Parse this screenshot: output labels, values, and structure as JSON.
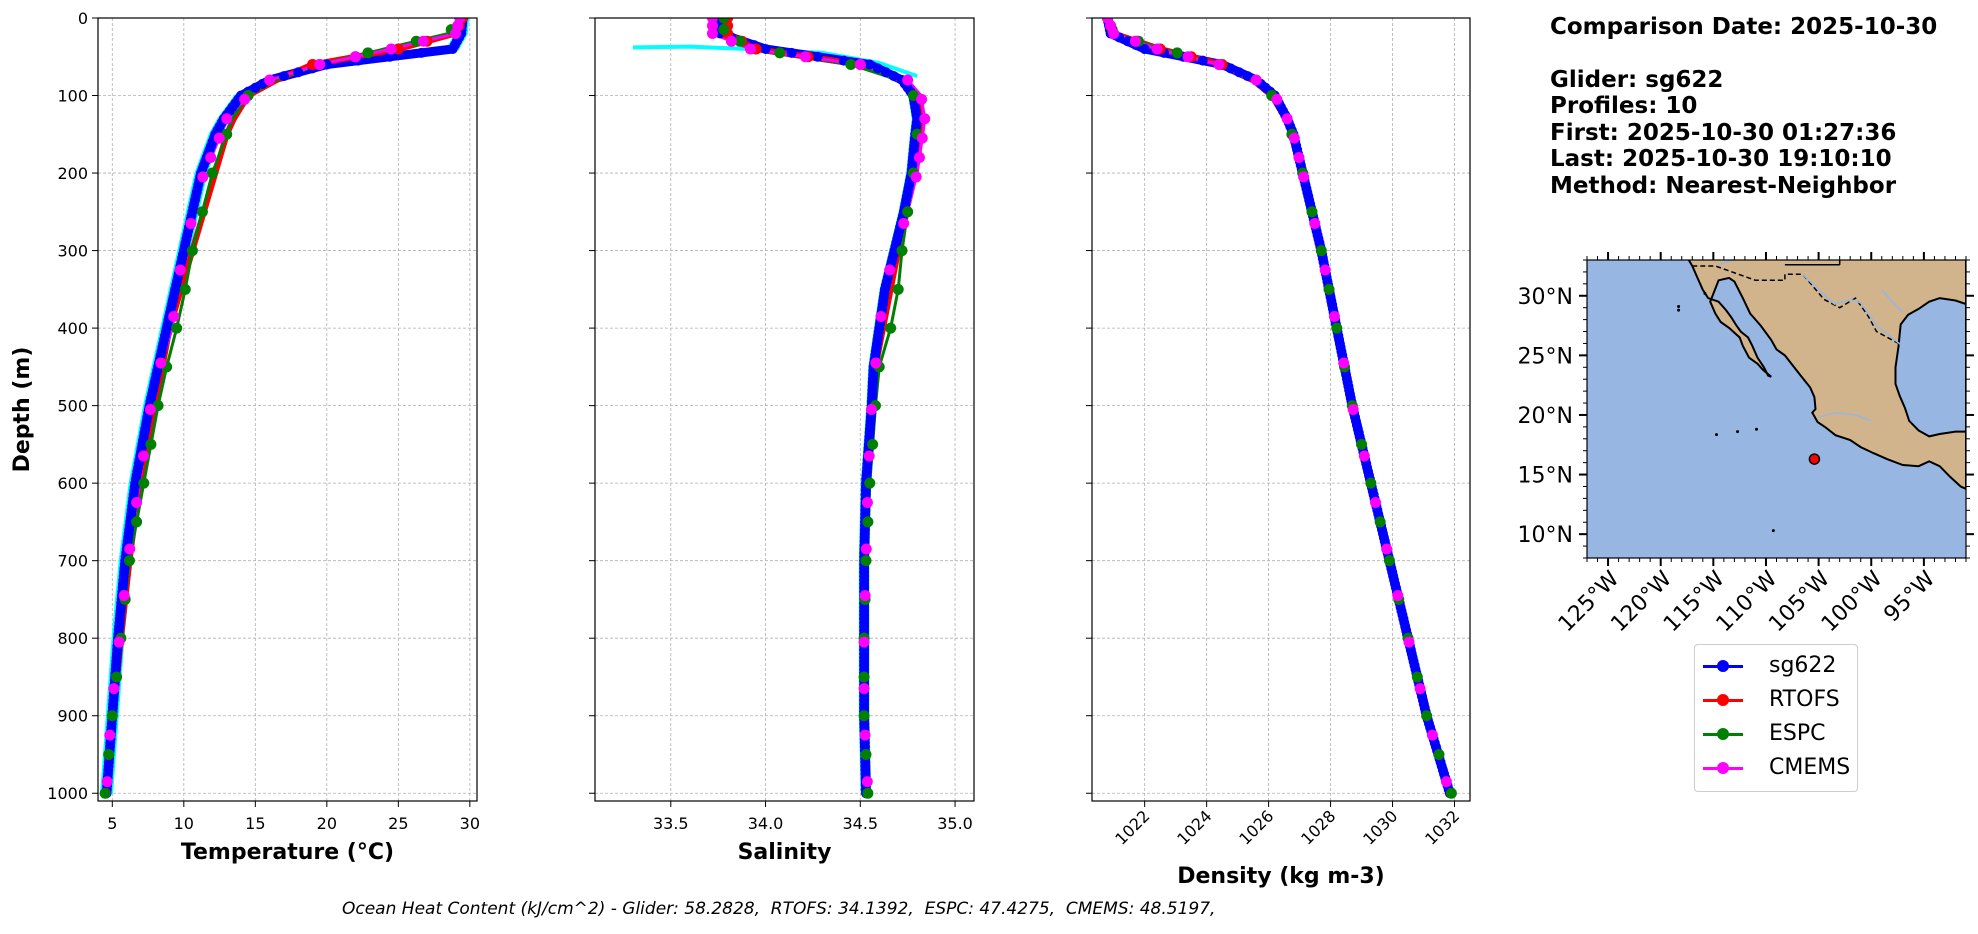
{
  "info": {
    "comparison_date": "Comparison Date: 2025-10-30",
    "glider": "Glider: sg622",
    "profiles": "Profiles: 10",
    "first": "First: 2025-10-30 01:27:36",
    "last": "Last: 2025-10-30 19:10:10",
    "method": "Method: Nearest-Neighbor"
  },
  "legend": [
    {
      "label": "sg622",
      "color": "#0000ff"
    },
    {
      "label": "RTOFS",
      "color": "#ff0000"
    },
    {
      "label": "ESPC",
      "color": "#008000"
    },
    {
      "label": "CMEMS",
      "color": "#ff00ff"
    }
  ],
  "ohc_text": "Ocean Heat Content (kJ/cm^2) - Glider: 58.2828,  RTOFS: 34.1392,  ESPC: 47.4275,  CMEMS: 48.5197,",
  "colors": {
    "glider": "#0000ff",
    "glider_individual": "#00ffff",
    "rtofs": "#ff0000",
    "espc": "#008000",
    "cmems": "#ff00ff",
    "ocean": "#97b6e1",
    "land": "#d2b48c",
    "dot": "#ff0000"
  },
  "chart_data": [
    {
      "type": "line",
      "xlabel": "Temperature (°C)",
      "ylabel": "Depth (m)",
      "xlim": [
        4,
        30.5
      ],
      "ylim": [
        1010,
        0
      ],
      "xticks": [
        5,
        10,
        15,
        20,
        25,
        30
      ],
      "yticks": [
        0,
        100,
        200,
        300,
        400,
        500,
        600,
        700,
        800,
        900,
        1000
      ],
      "grid": true,
      "depth": [
        0,
        20,
        40,
        60,
        80,
        100,
        130,
        150,
        200,
        250,
        300,
        350,
        400,
        450,
        500,
        600,
        700,
        800,
        900,
        1000
      ],
      "series": [
        {
          "name": "sg622",
          "values": [
            29.5,
            29.4,
            28.8,
            20.0,
            16.0,
            14.0,
            12.8,
            12.2,
            11.2,
            10.6,
            10.0,
            9.4,
            8.8,
            8.2,
            7.6,
            6.6,
            5.9,
            5.4,
            5.0,
            4.6
          ]
        },
        {
          "name": "RTOFS",
          "values": [
            29.5,
            29.0,
            25.0,
            19.0,
            16.5,
            14.5,
            13.5,
            13.0,
            12.2,
            11.4,
            10.6,
            9.8,
            9.0,
            8.5,
            7.9,
            6.9,
            6.2,
            5.6,
            5.1,
            4.6
          ]
        },
        {
          "name": "ESPC",
          "values": [
            29.3,
            28.5,
            24.0,
            19.5,
            16.5,
            14.5,
            13.4,
            13.0,
            12.0,
            11.3,
            10.6,
            10.1,
            9.5,
            8.8,
            8.2,
            7.2,
            6.2,
            5.6,
            5.0,
            4.5
          ]
        },
        {
          "name": "CMEMS",
          "values": [
            29.3,
            29.0,
            24.5,
            19.5,
            16.0,
            14.5,
            13.0,
            12.6,
            11.4,
            10.7,
            10.0,
            9.5,
            9.2,
            8.3,
            7.7,
            6.9,
            6.1,
            5.5,
            4.9,
            4.6
          ]
        }
      ]
    },
    {
      "type": "line",
      "xlabel": "Salinity",
      "ylim": [
        1010,
        0
      ],
      "xlim": [
        33.1,
        35.1
      ],
      "xticks": [
        33.5,
        34.0,
        34.5,
        35.0
      ],
      "grid": true,
      "depth": [
        0,
        20,
        40,
        60,
        80,
        100,
        130,
        150,
        200,
        250,
        300,
        350,
        400,
        450,
        500,
        600,
        700,
        800,
        900,
        1000
      ],
      "series": [
        {
          "name": "sg622",
          "values": [
            33.75,
            33.76,
            34.0,
            34.55,
            34.72,
            34.78,
            34.8,
            34.79,
            34.77,
            34.73,
            34.68,
            34.63,
            34.6,
            34.57,
            34.56,
            34.53,
            34.52,
            34.52,
            34.52,
            34.53
          ]
        },
        {
          "name": "RTOFS",
          "values": [
            33.8,
            33.8,
            33.95,
            34.5,
            34.72,
            34.8,
            34.83,
            34.82,
            34.78,
            34.74,
            34.7,
            34.66,
            34.62,
            34.58,
            34.56,
            34.54,
            34.53,
            34.53,
            34.53,
            34.54
          ]
        },
        {
          "name": "ESPC",
          "values": [
            33.78,
            33.78,
            33.95,
            34.45,
            34.7,
            34.78,
            34.8,
            34.8,
            34.78,
            34.75,
            34.72,
            34.7,
            34.66,
            34.6,
            34.58,
            34.55,
            34.53,
            34.52,
            34.52,
            34.54
          ]
        },
        {
          "name": "CMEMS",
          "values": [
            33.72,
            33.72,
            33.92,
            34.5,
            34.75,
            34.82,
            34.84,
            34.83,
            34.8,
            34.75,
            34.68,
            34.63,
            34.6,
            34.58,
            34.56,
            34.54,
            34.53,
            34.52,
            34.52,
            34.54
          ]
        }
      ]
    },
    {
      "type": "line",
      "xlabel": "Density (kg m-3)",
      "ylim": [
        1010,
        0
      ],
      "xlim": [
        1020.3,
        1032.5
      ],
      "xticks": [
        1022,
        1024,
        1026,
        1028,
        1030,
        1032
      ],
      "grid": true,
      "depth": [
        0,
        20,
        40,
        60,
        80,
        100,
        130,
        150,
        200,
        250,
        300,
        350,
        400,
        450,
        500,
        600,
        700,
        800,
        900,
        1000
      ],
      "series": [
        {
          "name": "sg622",
          "values": [
            1020.8,
            1020.9,
            1022.0,
            1024.5,
            1025.6,
            1026.2,
            1026.6,
            1026.8,
            1027.1,
            1027.4,
            1027.7,
            1027.95,
            1028.2,
            1028.45,
            1028.7,
            1029.3,
            1029.9,
            1030.5,
            1031.1,
            1031.85
          ]
        },
        {
          "name": "RTOFS",
          "values": [
            1020.8,
            1021.0,
            1022.5,
            1024.5,
            1025.5,
            1026.1,
            1026.55,
            1026.75,
            1027.1,
            1027.4,
            1027.7,
            1027.95,
            1028.2,
            1028.45,
            1028.7,
            1029.3,
            1029.9,
            1030.5,
            1031.1,
            1031.8
          ]
        },
        {
          "name": "ESPC",
          "values": [
            1020.8,
            1021.0,
            1022.6,
            1024.4,
            1025.5,
            1026.1,
            1026.55,
            1026.75,
            1027.1,
            1027.4,
            1027.7,
            1027.95,
            1028.2,
            1028.45,
            1028.7,
            1029.3,
            1029.9,
            1030.5,
            1031.1,
            1031.9
          ]
        },
        {
          "name": "CMEMS",
          "values": [
            1020.8,
            1021.0,
            1022.4,
            1024.4,
            1025.6,
            1026.2,
            1026.6,
            1026.8,
            1027.1,
            1027.4,
            1027.7,
            1027.95,
            1028.2,
            1028.45,
            1028.7,
            1029.3,
            1029.9,
            1030.5,
            1031.1,
            1031.85
          ]
        }
      ]
    },
    {
      "type": "scatter",
      "xlim": [
        -127,
        -91
      ],
      "ylim": [
        8,
        33
      ],
      "xticks_labels": [
        "125°W",
        "120°W",
        "115°W",
        "110°W",
        "105°W",
        "100°W",
        "95°W"
      ],
      "xticks": [
        -125,
        -120,
        -115,
        -110,
        -105,
        -100,
        -95
      ],
      "yticks_labels": [
        "30°N",
        "25°N",
        "20°N",
        "15°N",
        "10°N"
      ],
      "yticks": [
        30,
        25,
        20,
        15,
        10
      ],
      "glider_position": {
        "lon": -105.4,
        "lat": 16.3
      }
    }
  ]
}
